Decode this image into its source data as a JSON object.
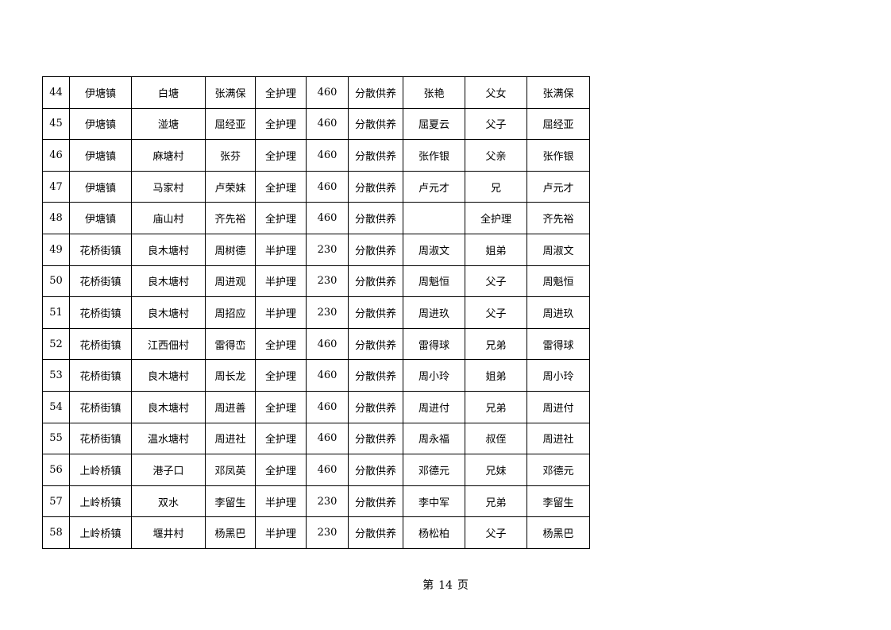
{
  "rows": [
    [
      "44",
      "伊塘镇",
      "白塘",
      "张满保",
      "全护理",
      "460",
      "分散供养",
      "张艳",
      "父女",
      "张满保"
    ],
    [
      "45",
      "伊塘镇",
      "湴塘",
      "屈经亚",
      "全护理",
      "460",
      "分散供养",
      "屈夏云",
      "父子",
      "屈经亚"
    ],
    [
      "46",
      "伊塘镇",
      "麻塘村",
      "张芬",
      "全护理",
      "460",
      "分散供养",
      "张作银",
      "父亲",
      "张作银"
    ],
    [
      "47",
      "伊塘镇",
      "马家村",
      "卢荣妹",
      "全护理",
      "460",
      "分散供养",
      "卢元才",
      "兄",
      "卢元才"
    ],
    [
      "48",
      "伊塘镇",
      "庙山村",
      "齐先裕",
      "全护理",
      "460",
      "分散供养",
      "",
      "全护理",
      "齐先裕"
    ],
    [
      "49",
      "花桥街镇",
      "良木塘村",
      "周树德",
      "半护理",
      "230",
      "分散供养",
      "周淑文",
      "姐弟",
      "周淑文"
    ],
    [
      "50",
      "花桥街镇",
      "良木塘村",
      "周进观",
      "半护理",
      "230",
      "分散供养",
      "周魁恒",
      "父子",
      "周魁恒"
    ],
    [
      "51",
      "花桥街镇",
      "良木塘村",
      "周招应",
      "半护理",
      "230",
      "分散供养",
      "周进玖",
      "父子",
      "周进玖"
    ],
    [
      "52",
      "花桥街镇",
      "江西佃村",
      "雷得峦",
      "全护理",
      "460",
      "分散供养",
      "雷得球",
      "兄弟",
      "雷得球"
    ],
    [
      "53",
      "花桥街镇",
      "良木塘村",
      "周长龙",
      "全护理",
      "460",
      "分散供养",
      "周小玲",
      "姐弟",
      "周小玲"
    ],
    [
      "54",
      "花桥街镇",
      "良木塘村",
      "周进善",
      "全护理",
      "460",
      "分散供养",
      "周进付",
      "兄弟",
      "周进付"
    ],
    [
      "55",
      "花桥街镇",
      "温水塘村",
      "周进社",
      "全护理",
      "460",
      "分散供养",
      "周永福",
      "叔侄",
      "周进社"
    ],
    [
      "56",
      "上岭桥镇",
      "港子口",
      "邓凤英",
      "全护理",
      "460",
      "分散供养",
      "邓德元",
      "兄妹",
      "邓德元"
    ],
    [
      "57",
      "上岭桥镇",
      "双水",
      "李留生",
      "半护理",
      "230",
      "分散供养",
      "李中军",
      "兄弟",
      "李留生"
    ],
    [
      "58",
      "上岭桥镇",
      "堰井村",
      "杨黑巴",
      "半护理",
      "230",
      "分散供养",
      "杨松柏",
      "父子",
      "杨黑巴"
    ]
  ],
  "footer": {
    "prefix": "第",
    "page": "14",
    "suffix": "页"
  }
}
